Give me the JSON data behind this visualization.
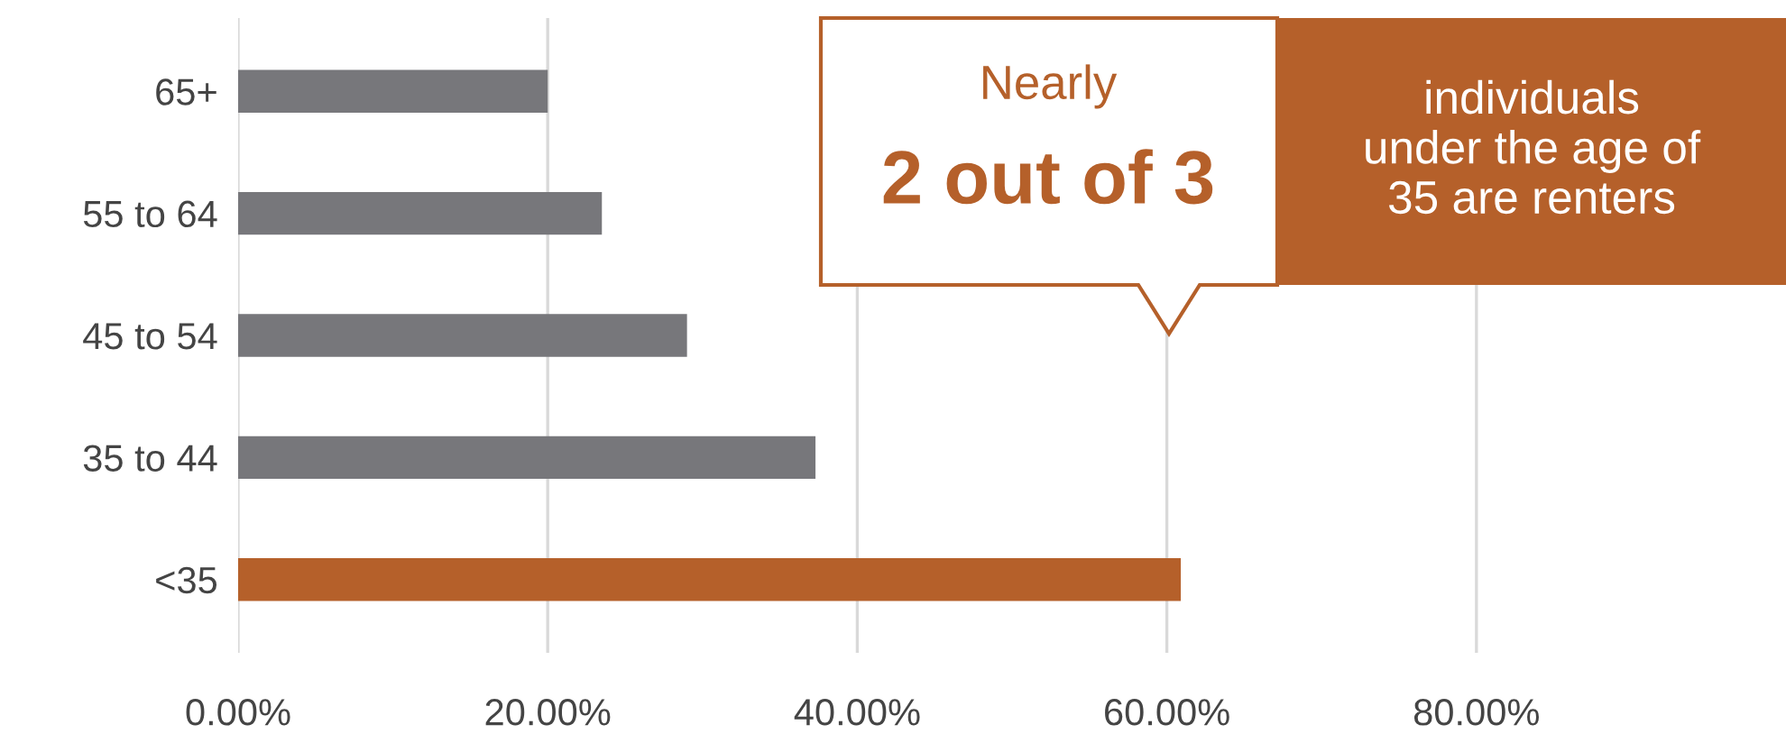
{
  "chart_data": {
    "type": "bar",
    "orientation": "horizontal",
    "categories": [
      "65+",
      "55 to 64",
      "45 to 54",
      "35 to 44",
      "<35"
    ],
    "values": [
      20.0,
      23.5,
      29.0,
      37.3,
      60.9
    ],
    "colors": [
      "#77777b",
      "#77777b",
      "#77777b",
      "#77777b",
      "#b5602a"
    ],
    "xlim": [
      0,
      100
    ],
    "xticks": [
      {
        "value": 0,
        "label": "0.00%"
      },
      {
        "value": 20,
        "label": "20.00%"
      },
      {
        "value": 40,
        "label": "40.00%"
      },
      {
        "value": 60,
        "label": "60.00%"
      },
      {
        "value": 80,
        "label": "80.00%"
      }
    ],
    "grid": "x",
    "annotations": [
      "Nearly",
      "2 out of 3",
      "individuals\nunder the age of\n35 are renters"
    ]
  }
}
